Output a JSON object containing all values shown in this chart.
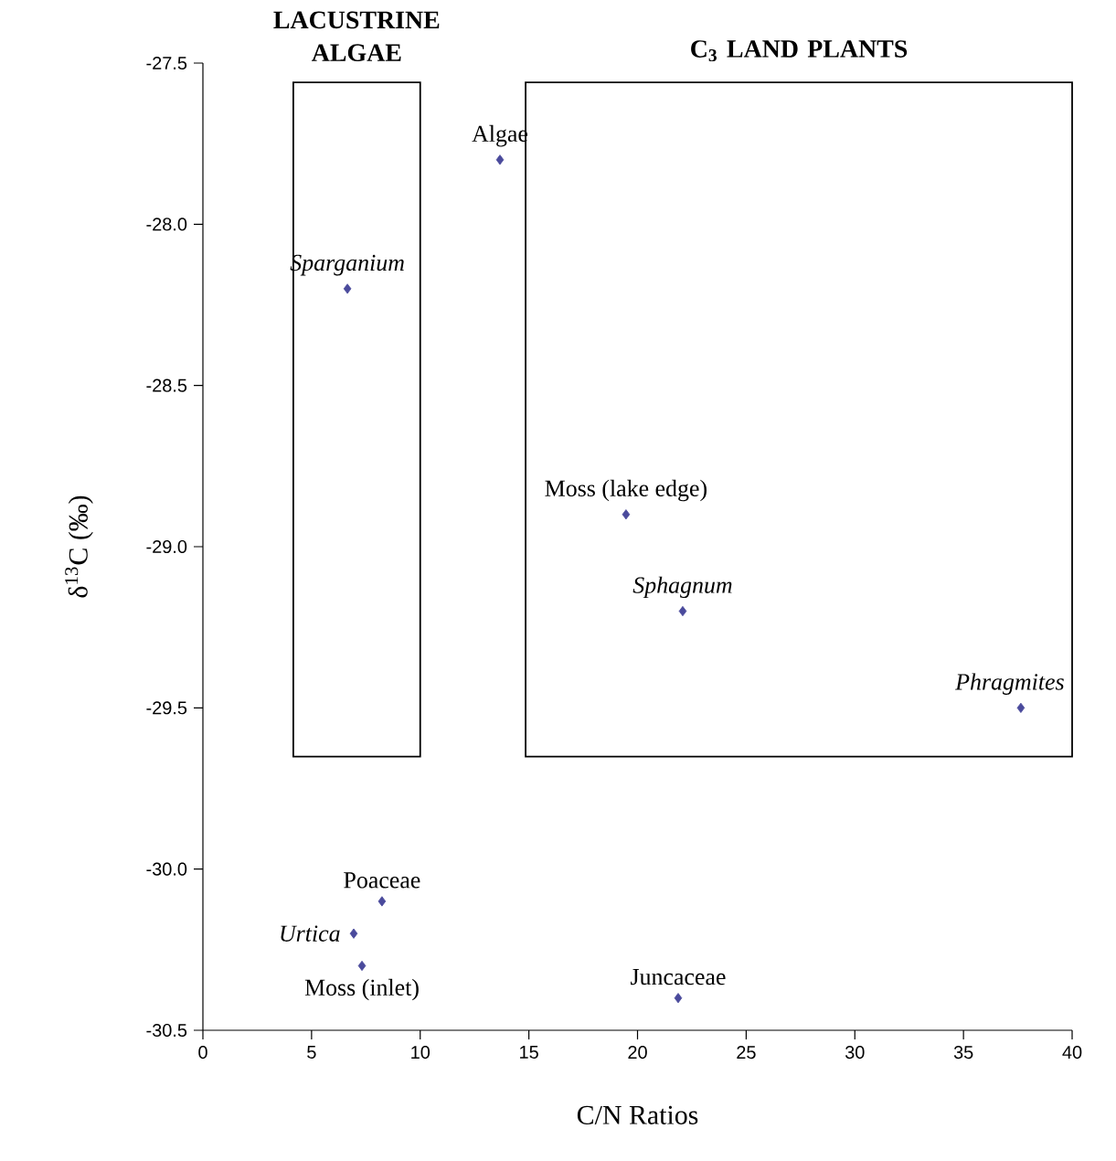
{
  "chart_data": {
    "type": "scatter",
    "xlabel": "C/N Ratios",
    "ylabel": "δ$^{13}$C (‰)",
    "series": [
      {
        "color": "#4a4a9c",
        "x": [
          13.67,
          6.65,
          19.47,
          22.08,
          37.64,
          8.24,
          6.94,
          7.32,
          21.87
        ],
        "values": [
          -27.8,
          -28.2,
          -28.9,
          -29.2,
          -29.5,
          -30.1,
          -30.2,
          -30.3,
          -30.4
        ]
      }
    ],
    "marker": "diamond",
    "xlim": [
      0,
      40
    ],
    "xticks": [
      0,
      5,
      10,
      15,
      20,
      25,
      30,
      35,
      40
    ],
    "ylim": [
      -30.5,
      -27.5
    ],
    "yticks": [
      {
        "value": -30.5,
        "label": "-30.5"
      },
      {
        "value": -30,
        "label": "-30.0"
      },
      {
        "value": -29.5,
        "label": "-29.5"
      },
      {
        "value": -29,
        "label": "-29.0"
      },
      {
        "value": -28.5,
        "label": "-28.5"
      },
      {
        "value": -28,
        "label": "-28.0"
      },
      {
        "value": -27.5,
        "label": "-27.5"
      }
    ],
    "bands": [
      {
        "axis": "x",
        "from": 4.16,
        "to": 10.0,
        "label": "LACUSTRINE ALGAE"
      },
      {
        "axis": "x",
        "from": 14.85,
        "to": 40,
        "label": "C$_{3}$ LAND PLANTS"
      }
    ],
    "annotations": [
      {
        "text": "Algae",
        "x": 13.67,
        "y": -27.8
      },
      {
        "text": "*Sparganium*",
        "x": 6.65,
        "y": -28.2
      },
      {
        "text": "Moss (lake edge)",
        "x": 19.47,
        "y": -28.9
      },
      {
        "text": "*Sphagnum*",
        "x": 22.08,
        "y": -29.2
      },
      {
        "text": "*Phragmites*",
        "x": 37.64,
        "y": -29.5
      },
      {
        "text": "Poaceae",
        "x": 8.24,
        "y": -30.1
      },
      {
        "text": "*Urtica*",
        "x": 6.94,
        "y": -30.2
      },
      {
        "text": "Moss (inlet)",
        "x": 7.32,
        "y": -30.3
      },
      {
        "text": "Juncaceae",
        "x": 21.87,
        "y": -30.4
      }
    ]
  }
}
